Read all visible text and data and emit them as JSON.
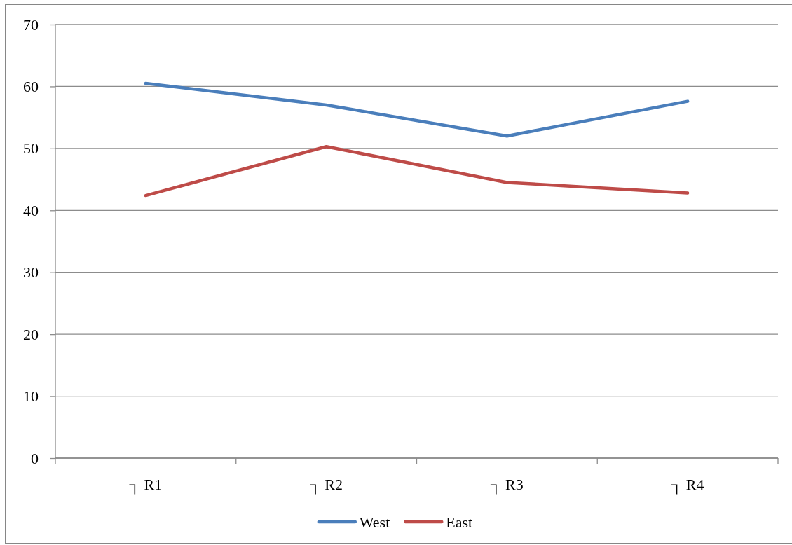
{
  "chart_data": {
    "type": "line",
    "categories": [
      "┐ R1",
      "┐ R2",
      "┐ R3",
      "┐ R4"
    ],
    "series": [
      {
        "name": "West",
        "color": "#4a7ebb",
        "values": [
          60.5,
          57.0,
          52.0,
          57.6
        ]
      },
      {
        "name": "East",
        "color": "#be4b48",
        "values": [
          42.4,
          50.3,
          44.5,
          42.8
        ]
      }
    ],
    "ylim": [
      0,
      70
    ],
    "yticks": [
      0,
      10,
      20,
      30,
      40,
      50,
      60,
      70
    ],
    "grid": "y",
    "legend": "bottom",
    "marker": "none",
    "line_style": "solid"
  }
}
